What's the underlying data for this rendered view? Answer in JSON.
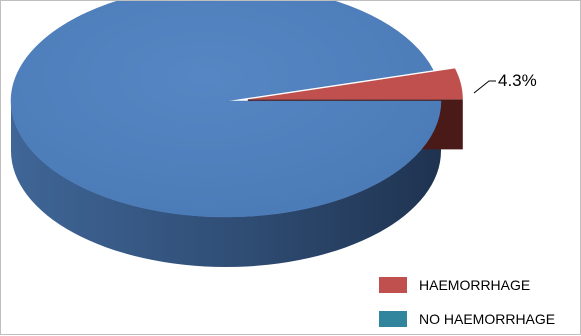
{
  "chart_data": {
    "type": "pie",
    "style": "3d",
    "categories": [
      "HAEMORRHAGE",
      "NO HAEMORRHAGE"
    ],
    "values": [
      4.3,
      95.7
    ],
    "unit": "%",
    "data_labels": [
      "4.3%",
      ""
    ],
    "colors": {
      "HAEMORRHAGE": "#c0504d",
      "NO HAEMORRHAGE": "#4f81bd",
      "legend_no_haemorrhage_swatch": "#31859c"
    },
    "exploded_slice": "HAEMORRHAGE",
    "legend": {
      "position": "bottom-right",
      "entries": [
        "HAEMORRHAGE",
        "NO HAEMORRHAGE"
      ]
    }
  }
}
